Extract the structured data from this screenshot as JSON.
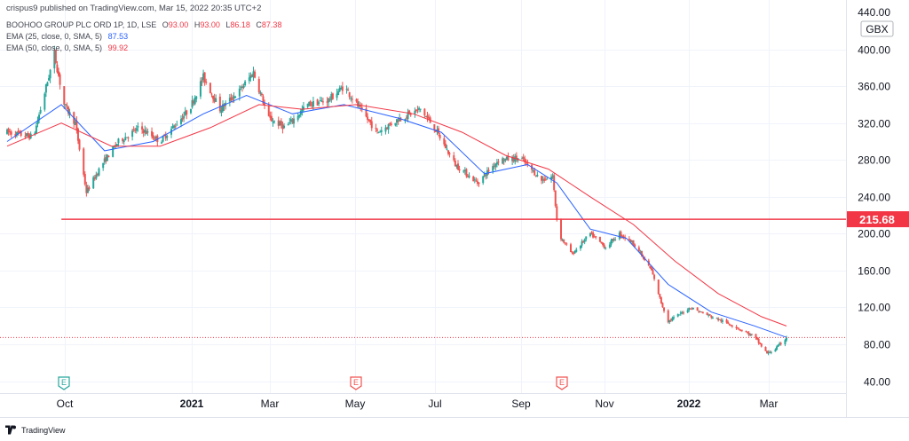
{
  "header": {
    "published_line": "crispus9 published on TradingView.com, Mar 15, 2022 20:35 UTC+2",
    "symbol_line": "BOOHOO GROUP PLC ORD 1P, 1D, LSE",
    "ohlc": {
      "o_label": "O",
      "o": "93.00",
      "h_label": "H",
      "h": "93.00",
      "l_label": "L",
      "l": "86.18",
      "c_label": "C",
      "c": "87.38"
    },
    "ema25_label": "EMA (25, close, 0, SMA, 5)",
    "ema25_value": "87.53",
    "ema50_label": "EMA (50, close, 0, SMA, 5)",
    "ema50_value": "99.92"
  },
  "footer": {
    "brand": "TradingView"
  },
  "colors": {
    "up": "#26a69a",
    "down": "#ef5350",
    "ema25": "#2962ff",
    "ema50": "#f23645",
    "support_line": "#f23645",
    "last_price_dotted": "#f23645"
  },
  "chart_data": {
    "type": "candlestick",
    "title": "",
    "currency_label": "GBX",
    "y_axis": {
      "ticks": [
        "400.00",
        "360.00",
        "320.00",
        "280.00",
        "240.00",
        "200.00",
        "160.00",
        "120.00",
        "80.00",
        "40.00"
      ],
      "ylim": [
        30,
        440
      ],
      "top_partial_tick": "440.00"
    },
    "x_axis": {
      "ticks": [
        "Oct",
        "2021",
        "Mar",
        "May",
        "Jul",
        "Sep",
        "Nov",
        "2022",
        "Mar"
      ],
      "bold_ticks": [
        "2021",
        "2022"
      ]
    },
    "earnings_markers": [
      {
        "label": "E",
        "x_date": "Oct",
        "color": "#26a69a"
      },
      {
        "label": "E",
        "x_date": "May",
        "color": "#ef5350"
      },
      {
        "label": "E",
        "x_date": "Sep",
        "color": "#ef5350"
      }
    ],
    "horizontal_line": {
      "value": 215.68,
      "label": "215.68",
      "start_x_date": "2020-10-10"
    },
    "last_price": 87.38,
    "price_path": [
      [
        "2020-09-01",
        310
      ],
      [
        "2020-09-20",
        305
      ],
      [
        "2020-10-05",
        395
      ],
      [
        "2020-10-12",
        340
      ],
      [
        "2020-10-20",
        320
      ],
      [
        "2020-10-28",
        245
      ],
      [
        "2020-11-08",
        275
      ],
      [
        "2020-11-20",
        300
      ],
      [
        "2020-12-05",
        315
      ],
      [
        "2020-12-20",
        300
      ],
      [
        "2021-01-10",
        335
      ],
      [
        "2021-01-20",
        370
      ],
      [
        "2021-02-01",
        335
      ],
      [
        "2021-02-15",
        355
      ],
      [
        "2021-02-25",
        375
      ],
      [
        "2021-03-08",
        325
      ],
      [
        "2021-03-20",
        315
      ],
      [
        "2021-04-05",
        340
      ],
      [
        "2021-04-20",
        345
      ],
      [
        "2021-05-01",
        360
      ],
      [
        "2021-05-15",
        330
      ],
      [
        "2021-05-25",
        310
      ],
      [
        "2021-06-10",
        325
      ],
      [
        "2021-06-25",
        335
      ],
      [
        "2021-07-05",
        315
      ],
      [
        "2021-07-20",
        275
      ],
      [
        "2021-08-05",
        255
      ],
      [
        "2021-08-20",
        280
      ],
      [
        "2021-09-05",
        282
      ],
      [
        "2021-09-20",
        258
      ],
      [
        "2021-09-28",
        262
      ],
      [
        "2021-10-02",
        200
      ],
      [
        "2021-10-12",
        178
      ],
      [
        "2021-10-25",
        200
      ],
      [
        "2021-11-05",
        185
      ],
      [
        "2021-11-15",
        200
      ],
      [
        "2021-11-25",
        190
      ],
      [
        "2021-12-08",
        160
      ],
      [
        "2021-12-15",
        125
      ],
      [
        "2021-12-20",
        105
      ],
      [
        "2022-01-05",
        120
      ],
      [
        "2022-01-20",
        110
      ],
      [
        "2022-02-05",
        100
      ],
      [
        "2022-02-20",
        88
      ],
      [
        "2022-03-01",
        70
      ],
      [
        "2022-03-07",
        75
      ],
      [
        "2022-03-15",
        87
      ]
    ],
    "series": [
      {
        "name": "EMA (25, close, 0, SMA, 5)",
        "color": "#2962ff",
        "points": [
          [
            "2020-09-01",
            300
          ],
          [
            "2020-10-10",
            340
          ],
          [
            "2020-11-10",
            290
          ],
          [
            "2020-12-15",
            300
          ],
          [
            "2021-01-20",
            330
          ],
          [
            "2021-02-20",
            350
          ],
          [
            "2021-03-25",
            330
          ],
          [
            "2021-05-01",
            340
          ],
          [
            "2021-06-10",
            325
          ],
          [
            "2021-07-10",
            310
          ],
          [
            "2021-08-10",
            265
          ],
          [
            "2021-09-10",
            275
          ],
          [
            "2021-10-01",
            255
          ],
          [
            "2021-10-25",
            205
          ],
          [
            "2021-11-20",
            195
          ],
          [
            "2021-12-20",
            145
          ],
          [
            "2022-01-20",
            115
          ],
          [
            "2022-02-20",
            100
          ],
          [
            "2022-03-15",
            87.53
          ]
        ]
      },
      {
        "name": "EMA (50, close, 0, SMA, 5)",
        "color": "#f23645",
        "points": [
          [
            "2020-09-01",
            295
          ],
          [
            "2020-10-10",
            320
          ],
          [
            "2020-11-15",
            295
          ],
          [
            "2020-12-20",
            295
          ],
          [
            "2021-01-25",
            315
          ],
          [
            "2021-03-01",
            340
          ],
          [
            "2021-04-01",
            335
          ],
          [
            "2021-05-10",
            340
          ],
          [
            "2021-06-20",
            330
          ],
          [
            "2021-07-25",
            310
          ],
          [
            "2021-08-25",
            285
          ],
          [
            "2021-09-25",
            270
          ],
          [
            "2021-10-25",
            240
          ],
          [
            "2021-11-25",
            210
          ],
          [
            "2021-12-25",
            170
          ],
          [
            "2022-01-25",
            135
          ],
          [
            "2022-02-25",
            110
          ],
          [
            "2022-03-15",
            99.92
          ]
        ]
      }
    ],
    "grid": true
  }
}
